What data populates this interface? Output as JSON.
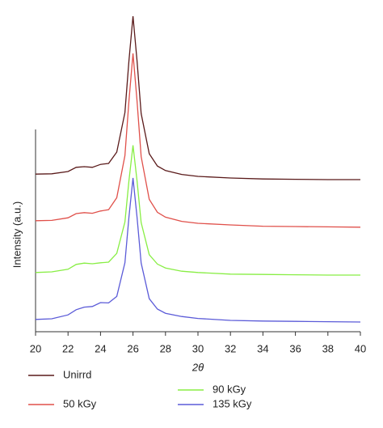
{
  "chart_data": {
    "type": "line",
    "x_label": "2θ",
    "y_label": "Intensity (a.u.)",
    "x": [
      20,
      21,
      22,
      22.5,
      23,
      23.5,
      24,
      24.5,
      25,
      25.5,
      25.75,
      26,
      26.25,
      26.5,
      27,
      27.5,
      28,
      29,
      30,
      32,
      34,
      36,
      38,
      40
    ],
    "series": [
      {
        "name": "Unirrd",
        "color": "#5a1a1a",
        "values": [
          48.7,
          48.8,
          49.5,
          50.8,
          51.0,
          50.8,
          51.7,
          52.0,
          55.5,
          67.7,
          83.8,
          97.5,
          83.7,
          67.4,
          55.0,
          51.2,
          49.8,
          48.6,
          48.0,
          47.5,
          47.2,
          47.1,
          47.0,
          47.0
        ]
      },
      {
        "name": "50 kGy",
        "color": "#e0504a",
        "values": [
          34.3,
          34.4,
          35.2,
          36.5,
          36.8,
          36.6,
          37.3,
          37.7,
          41.4,
          54.4,
          71.4,
          86.0,
          71.3,
          54.1,
          40.9,
          36.9,
          35.4,
          34.1,
          33.5,
          33.0,
          32.6,
          32.5,
          32.4,
          32.3
        ]
      },
      {
        "name": "90 kGy",
        "color": "#88ee44",
        "values": [
          18.3,
          18.5,
          19.3,
          20.8,
          21.2,
          21.0,
          21.3,
          21.5,
          24.2,
          33.9,
          46.7,
          57.6,
          46.6,
          33.7,
          23.8,
          20.9,
          19.7,
          18.7,
          18.3,
          17.8,
          17.7,
          17.6,
          17.5,
          17.5
        ]
      },
      {
        "name": "135 kGy",
        "color": "#5b5bd8",
        "values": [
          3.8,
          4.0,
          5.2,
          6.8,
          7.6,
          7.8,
          9.0,
          8.9,
          10.9,
          21.3,
          35.5,
          47.5,
          35.4,
          21.2,
          10.2,
          7.0,
          5.7,
          4.7,
          4.1,
          3.5,
          3.3,
          3.2,
          3.1,
          3.0
        ]
      }
    ],
    "xlim": [
      20,
      40
    ],
    "xticks": [
      20,
      22,
      24,
      26,
      28,
      30,
      32,
      34,
      36,
      38,
      40
    ],
    "ylim": [
      0,
      100
    ]
  }
}
